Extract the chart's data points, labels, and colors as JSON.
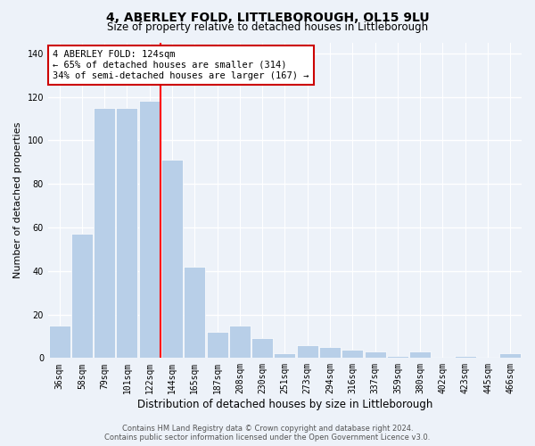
{
  "title": "4, ABERLEY FOLD, LITTLEBOROUGH, OL15 9LU",
  "subtitle": "Size of property relative to detached houses in Littleborough",
  "xlabel": "Distribution of detached houses by size in Littleborough",
  "ylabel": "Number of detached properties",
  "categories": [
    "36sqm",
    "58sqm",
    "79sqm",
    "101sqm",
    "122sqm",
    "144sqm",
    "165sqm",
    "187sqm",
    "208sqm",
    "230sqm",
    "251sqm",
    "273sqm",
    "294sqm",
    "316sqm",
    "337sqm",
    "359sqm",
    "380sqm",
    "402sqm",
    "423sqm",
    "445sqm",
    "466sqm"
  ],
  "values": [
    15,
    57,
    115,
    115,
    118,
    91,
    42,
    12,
    15,
    9,
    2,
    6,
    5,
    4,
    3,
    1,
    3,
    0,
    1,
    0,
    2
  ],
  "bar_color": "#b8cfe8",
  "highlight_index": 4,
  "red_line_index": 4,
  "ylim": [
    0,
    145
  ],
  "yticks": [
    0,
    20,
    40,
    60,
    80,
    100,
    120,
    140
  ],
  "annotation_line1": "4 ABERLEY FOLD: 124sqm",
  "annotation_line2": "← 65% of detached houses are smaller (314)",
  "annotation_line3": "34% of semi-detached houses are larger (167) →",
  "annotation_box_color": "#ffffff",
  "annotation_box_edge": "#cc0000",
  "footer_line1": "Contains HM Land Registry data © Crown copyright and database right 2024.",
  "footer_line2": "Contains public sector information licensed under the Open Government Licence v3.0.",
  "background_color": "#edf2f9",
  "grid_color": "#ffffff",
  "title_fontsize": 10,
  "subtitle_fontsize": 8.5,
  "axis_label_fontsize": 8,
  "tick_fontsize": 7,
  "annotation_fontsize": 7.5,
  "footer_fontsize": 6
}
